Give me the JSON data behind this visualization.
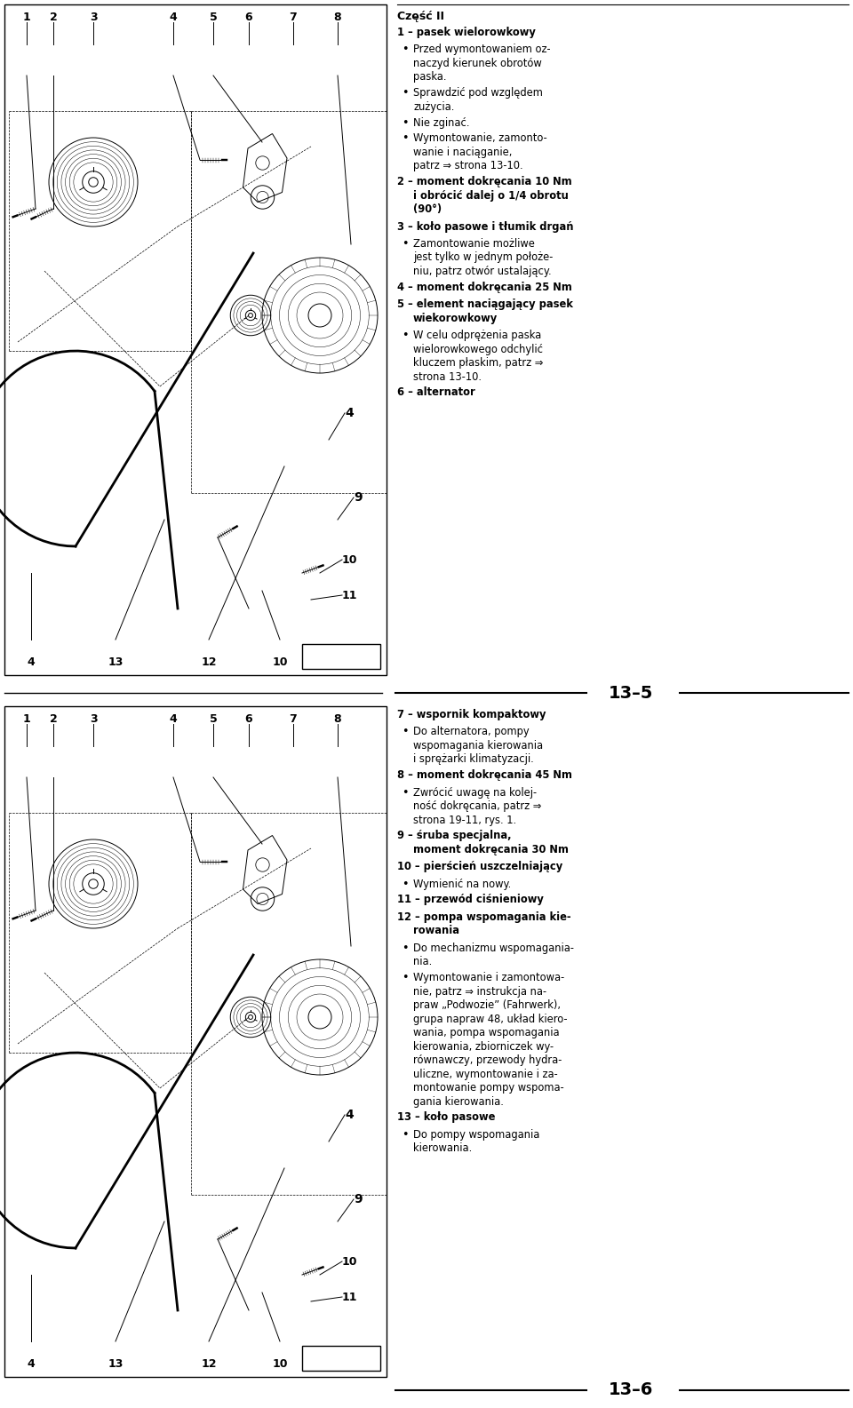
{
  "bg_color": "#ffffff",
  "page_width": 9.6,
  "page_height": 15.85,
  "section_label_top": "13–5",
  "section_label_bottom": "13–6",
  "right_text_top_title": "Część II",
  "right_text_top_items": [
    {
      "num": "1",
      "bold": true,
      "text": "pasek wielorowkowy"
    },
    {
      "num": "",
      "bold": false,
      "bullet": true,
      "text": "Przed wymontowaniem oz-\nnaczyd kierunek obrotów\npaska."
    },
    {
      "num": "",
      "bold": false,
      "bullet": true,
      "text": "Sprawdzić pod względem\nzużycia."
    },
    {
      "num": "",
      "bold": false,
      "bullet": true,
      "text": "Nie zginać."
    },
    {
      "num": "",
      "bold": false,
      "bullet": true,
      "text": "Wymontowanie, zamonto-\nwanie i naciąganie,\npatrz ⇒ strona 13-10."
    },
    {
      "num": "2",
      "bold": true,
      "text": "moment dokręcania 10 Nm\ni obrócić dalej o 1/4 obrotu\n(90°)"
    },
    {
      "num": "3",
      "bold": true,
      "text": "koło pasowe i tłumik drgań"
    },
    {
      "num": "",
      "bold": false,
      "bullet": true,
      "text": "Zamontowanie możliwe\njest tylko w jednym położe-\nniu, patrz otwór ustalający."
    },
    {
      "num": "4",
      "bold": true,
      "text": "moment dokręcania 25 Nm"
    },
    {
      "num": "5",
      "bold": true,
      "text": "element naciągający pasek\nwiekorowkowy"
    },
    {
      "num": "",
      "bold": false,
      "bullet": true,
      "text": "W celu odprężenia paska\nwielorowkowego odchylić\nkluczem płaskim, patrz ⇒\nstrona 13-10."
    },
    {
      "num": "6",
      "bold": true,
      "text": "alternator"
    }
  ],
  "right_text_bottom_items": [
    {
      "num": "7",
      "bold": true,
      "text": "wspornik kompaktowy"
    },
    {
      "num": "",
      "bold": false,
      "bullet": true,
      "text": "Do alternatora, pompy\nwspomagania kierowania\ni sprężarki klimatyzacji."
    },
    {
      "num": "8",
      "bold": true,
      "text": "moment dokręcania 45 Nm"
    },
    {
      "num": "",
      "bold": false,
      "bullet": true,
      "text": "Zwrócić uwagę na kolej-\nność dokręcania, patrz ⇒\nstrona 19-11, rys. 1."
    },
    {
      "num": "9",
      "bold": true,
      "text": "śruba specjalna,\nmoment dokręcania 30 Nm"
    },
    {
      "num": "10",
      "bold": true,
      "text": "pierścień uszczelniający"
    },
    {
      "num": "",
      "bold": false,
      "bullet": true,
      "text": "Wymienić na nowy."
    },
    {
      "num": "11",
      "bold": true,
      "text": "przewód ciśnieniowy"
    },
    {
      "num": "12",
      "bold": true,
      "text": "pompa wspomagania kie-\nrowania"
    },
    {
      "num": "",
      "bold": false,
      "bullet": true,
      "text": "Do mechanizmu wspomagania-\nnia."
    },
    {
      "num": "",
      "bold": false,
      "bullet": true,
      "text": "Wymontowanie i zamontowa-\nnie, patrz ⇒ instrukcja na-\npraw „Podwozie” (Fahrwerk),\ngrupa napraw 48, układ kiero-\nwania, pompa wspomagania\nkierowania, zbiorniczek wy-\nrównawczy, przewody hydra-\nuliczne, wymontowanie i za-\nmontowanie pompy wspoma-\ngania kierowania."
    },
    {
      "num": "13",
      "bold": true,
      "text": "koło pasowe"
    },
    {
      "num": "",
      "bold": false,
      "bullet": true,
      "text": "Do pompy wspomagania\nkierowania."
    }
  ]
}
